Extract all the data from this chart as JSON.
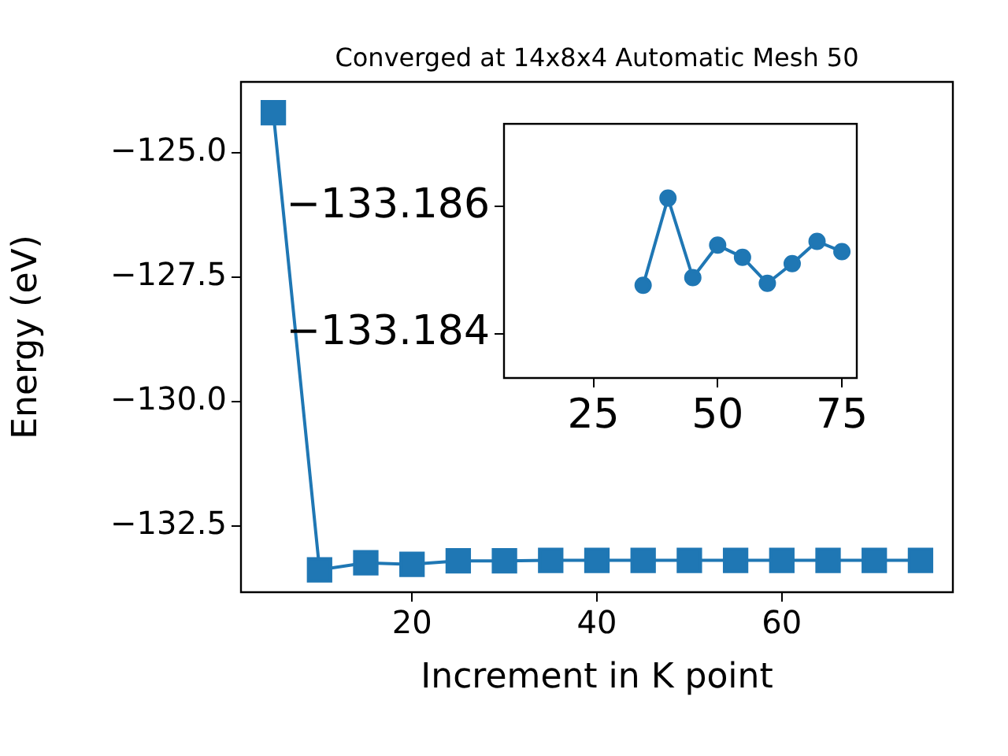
{
  "chart_data": [
    {
      "type": "line",
      "title": "Converged at 14x8x4 Automatic Mesh 50",
      "xlabel": "Increment in K point",
      "ylabel": "Energy (eV)",
      "marker": "square",
      "grid": false,
      "x": [
        5,
        10,
        15,
        20,
        25,
        30,
        35,
        40,
        45,
        50,
        55,
        60,
        65,
        70,
        75
      ],
      "series": [
        {
          "color": "#1f77b4",
          "values": [
            -124.2,
            -133.38,
            -133.24,
            -133.27,
            -133.2,
            -133.2,
            -133.19,
            -133.19,
            -133.19,
            -133.19,
            -133.19,
            -133.19,
            -133.19,
            -133.19,
            -133.19
          ]
        }
      ],
      "xlim": [
        1.5,
        78.5
      ],
      "ylim": [
        -133.83,
        -123.58
      ],
      "xticks": [
        20,
        40,
        60
      ],
      "yticks": [
        {
          "value": -125,
          "label": "−125.0"
        },
        {
          "value": -127.5,
          "label": "−127.5"
        },
        {
          "value": -130,
          "label": "−130.0"
        },
        {
          "value": -132.5,
          "label": "−132.5"
        }
      ]
    },
    {
      "type": "line",
      "marker": "circle",
      "grid": false,
      "x": [
        35,
        40,
        45,
        50,
        55,
        60,
        65,
        70,
        75
      ],
      "series": [
        {
          "color": "#1f77b4",
          "values": [
            -133.18476,
            -133.18613,
            -133.18488,
            -133.18539,
            -133.1852,
            -133.18479,
            -133.1851,
            -133.18545,
            -133.18529
          ]
        }
      ],
      "xlim": [
        7,
        78
      ],
      "ylim": [
        -133.1833,
        -133.1873
      ],
      "xticks": [
        25,
        50,
        75
      ],
      "yticks": [
        {
          "value": -133.186,
          "label": "−133.186"
        },
        {
          "value": -133.184,
          "label": "−133.184"
        }
      ]
    }
  ]
}
